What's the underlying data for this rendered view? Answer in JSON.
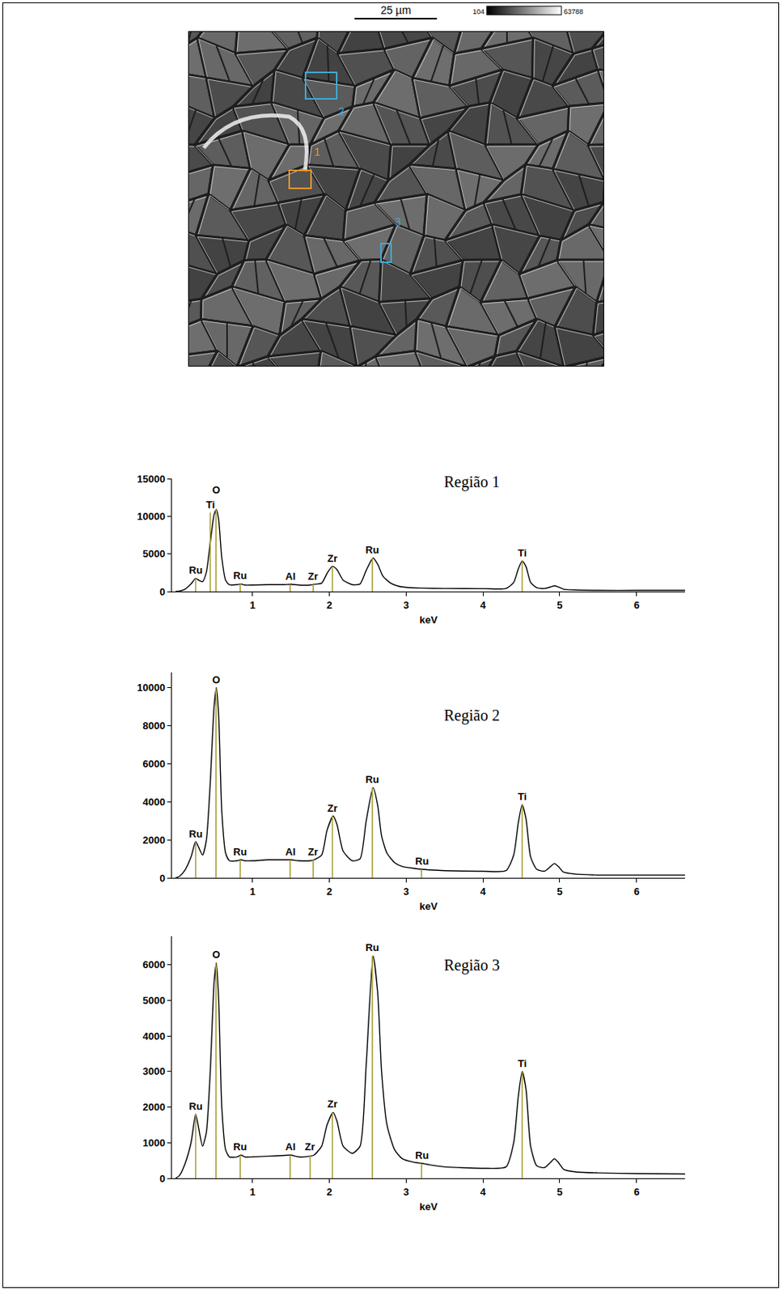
{
  "image": {
    "scale_bar": "25 µm",
    "colorbar": [
      104,
      63788
    ],
    "regions": [
      "1",
      "2",
      "3"
    ]
  },
  "chart_data": [
    {
      "type": "line",
      "title": "Região 1",
      "x_label": "keV",
      "color": "#000000",
      "grid": false,
      "xlim": [
        -0.05,
        6.63
      ],
      "xticks": [
        1,
        2,
        3,
        4,
        5,
        6
      ],
      "ylim": [
        0,
        15000
      ],
      "yticks": [
        0,
        5000,
        10000,
        15000
      ],
      "x": [
        0,
        0.05,
        0.12,
        0.2,
        0.26,
        0.3,
        0.35,
        0.4,
        0.45,
        0.5,
        0.53,
        0.56,
        0.6,
        0.65,
        0.7,
        0.8,
        0.85,
        0.9,
        1.0,
        1.2,
        1.4,
        1.5,
        1.6,
        1.75,
        1.8,
        1.9,
        1.97,
        2.04,
        2.1,
        2.18,
        2.3,
        2.4,
        2.48,
        2.57,
        2.63,
        2.7,
        2.8,
        2.9,
        3.0,
        3.2,
        3.5,
        4.0,
        4.3,
        4.4,
        4.46,
        4.51,
        4.56,
        4.62,
        4.7,
        4.8,
        4.88,
        4.93,
        4.98,
        5.05,
        5.2,
        5.5,
        6.0,
        6.63
      ],
      "values": [
        0,
        50,
        300,
        1000,
        1750,
        1500,
        1300,
        2600,
        6500,
        10200,
        10900,
        9500,
        4500,
        1500,
        900,
        900,
        1000,
        850,
        850,
        900,
        900,
        950,
        850,
        850,
        950,
        1100,
        2400,
        3350,
        2900,
        1500,
        900,
        1000,
        2800,
        4450,
        3600,
        2000,
        1100,
        700,
        550,
        450,
        400,
        380,
        400,
        1200,
        3000,
        4050,
        3300,
        1200,
        500,
        400,
        600,
        750,
        600,
        300,
        200,
        150,
        150,
        150
      ],
      "annotations": [
        {
          "x": 0.26,
          "y": 1750,
          "text": "Ru"
        },
        {
          "x": 0.45,
          "y": 10500,
          "text": "Ti"
        },
        {
          "x": 0.525,
          "y": 10900,
          "text": "O"
        },
        {
          "x": 0.84,
          "y": 1000,
          "text": "Ru"
        },
        {
          "x": 1.49,
          "y": 950,
          "text": "Al"
        },
        {
          "x": 1.79,
          "y": 950,
          "text": "Zr"
        },
        {
          "x": 2.04,
          "y": 3350,
          "text": "Zr"
        },
        {
          "x": 2.56,
          "y": 4450,
          "text": "Ru"
        },
        {
          "x": 4.51,
          "y": 4050,
          "text": "Ti"
        }
      ]
    },
    {
      "type": "line",
      "title": "Região 2",
      "x_label": "keV",
      "color": "#000000",
      "grid": false,
      "xlim": [
        -0.05,
        6.63
      ],
      "xticks": [
        1,
        2,
        3,
        4,
        5,
        6
      ],
      "ylim": [
        0,
        10800
      ],
      "yticks": [
        0,
        2000,
        4000,
        6000,
        8000,
        10000
      ],
      "x": [
        0,
        0.05,
        0.12,
        0.2,
        0.26,
        0.3,
        0.35,
        0.4,
        0.45,
        0.5,
        0.53,
        0.56,
        0.6,
        0.65,
        0.7,
        0.8,
        0.85,
        0.9,
        1.0,
        1.2,
        1.4,
        1.5,
        1.6,
        1.75,
        1.8,
        1.9,
        1.97,
        2.05,
        2.1,
        2.18,
        2.3,
        2.4,
        2.48,
        2.57,
        2.63,
        2.68,
        2.75,
        2.85,
        2.95,
        3.1,
        3.2,
        3.3,
        3.5,
        4.0,
        4.3,
        4.4,
        4.46,
        4.51,
        4.56,
        4.62,
        4.7,
        4.8,
        4.88,
        4.93,
        4.98,
        5.05,
        5.2,
        5.5,
        6.0,
        6.63
      ],
      "values": [
        0,
        80,
        400,
        1100,
        1900,
        1600,
        1200,
        2000,
        5000,
        9000,
        10000,
        8500,
        3500,
        1300,
        900,
        900,
        950,
        900,
        900,
        950,
        950,
        950,
        900,
        900,
        950,
        1200,
        2500,
        3250,
        2800,
        1400,
        900,
        1000,
        3000,
        4750,
        3800,
        2200,
        1300,
        800,
        600,
        500,
        450,
        420,
        380,
        350,
        380,
        1200,
        2900,
        3850,
        3100,
        1100,
        450,
        350,
        600,
        750,
        600,
        300,
        200,
        150,
        150,
        150
      ],
      "annotations": [
        {
          "x": 0.26,
          "y": 1900,
          "text": "Ru"
        },
        {
          "x": 0.525,
          "y": 10000,
          "text": "O"
        },
        {
          "x": 0.84,
          "y": 950,
          "text": "Ru"
        },
        {
          "x": 1.49,
          "y": 950,
          "text": "Al"
        },
        {
          "x": 1.79,
          "y": 950,
          "text": "Zr"
        },
        {
          "x": 2.04,
          "y": 3250,
          "text": "Zr"
        },
        {
          "x": 2.56,
          "y": 4750,
          "text": "Ru"
        },
        {
          "x": 3.2,
          "y": 450,
          "text": "Ru"
        },
        {
          "x": 4.51,
          "y": 3850,
          "text": "Ti"
        }
      ]
    },
    {
      "type": "line",
      "title": "Região 3",
      "x_label": "keV",
      "color": "#000000",
      "grid": false,
      "xlim": [
        -0.05,
        6.63
      ],
      "xticks": [
        1,
        2,
        3,
        4,
        5,
        6
      ],
      "ylim": [
        0,
        6800
      ],
      "yticks": [
        0,
        1000,
        2000,
        3000,
        4000,
        5000,
        6000
      ],
      "x": [
        0,
        0.05,
        0.12,
        0.2,
        0.26,
        0.3,
        0.35,
        0.4,
        0.45,
        0.5,
        0.53,
        0.56,
        0.6,
        0.65,
        0.7,
        0.8,
        0.85,
        0.9,
        1.0,
        1.2,
        1.4,
        1.5,
        1.6,
        1.75,
        1.8,
        1.9,
        1.97,
        2.05,
        2.1,
        2.18,
        2.3,
        2.4,
        2.48,
        2.57,
        2.63,
        2.68,
        2.75,
        2.85,
        2.95,
        3.1,
        3.2,
        3.3,
        3.5,
        4.0,
        4.3,
        4.4,
        4.46,
        4.51,
        4.56,
        4.62,
        4.7,
        4.8,
        4.88,
        4.93,
        4.98,
        5.05,
        5.2,
        5.5,
        6.0,
        6.63
      ],
      "values": [
        0,
        80,
        400,
        1000,
        1800,
        1400,
        900,
        1300,
        3000,
        5500,
        6050,
        5000,
        2000,
        800,
        600,
        600,
        650,
        600,
        600,
        620,
        640,
        650,
        600,
        620,
        650,
        900,
        1500,
        1850,
        1600,
        900,
        700,
        900,
        3200,
        6250,
        5200,
        3000,
        1500,
        800,
        550,
        450,
        420,
        380,
        320,
        280,
        320,
        1000,
        2300,
        3000,
        2500,
        900,
        350,
        300,
        450,
        550,
        450,
        250,
        180,
        150,
        130,
        120
      ],
      "annotations": [
        {
          "x": 0.26,
          "y": 1800,
          "text": "Ru"
        },
        {
          "x": 0.525,
          "y": 6050,
          "text": "O"
        },
        {
          "x": 0.84,
          "y": 650,
          "text": "Ru"
        },
        {
          "x": 1.49,
          "y": 650,
          "text": "Al"
        },
        {
          "x": 1.75,
          "y": 650,
          "text": "Zr"
        },
        {
          "x": 2.04,
          "y": 1850,
          "text": "Zr"
        },
        {
          "x": 2.56,
          "y": 6250,
          "text": "Ru"
        },
        {
          "x": 3.2,
          "y": 420,
          "text": "Ru"
        },
        {
          "x": 4.51,
          "y": 3000,
          "text": "Ti"
        }
      ]
    }
  ]
}
